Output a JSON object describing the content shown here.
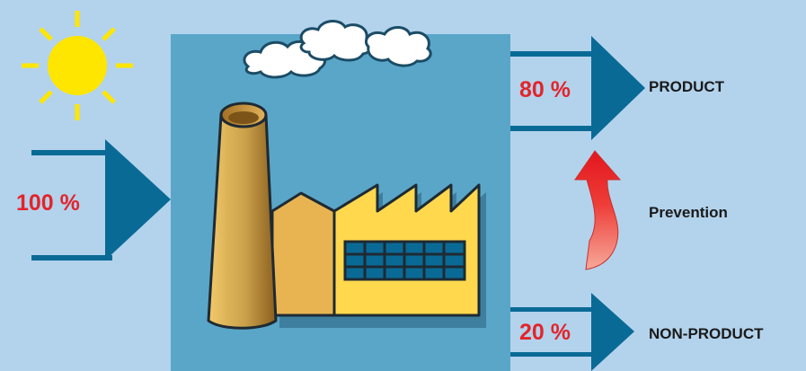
{
  "input": {
    "percent": "100 %"
  },
  "outputs": {
    "product": {
      "percent": "80 %",
      "label": "PRODUCT"
    },
    "non_product": {
      "percent": "20 %",
      "label": "NON-PRODUCT"
    }
  },
  "prevention": {
    "label": "Prevention"
  },
  "colors": {
    "background": "#b3d3ec",
    "factory_panel": "#5aa6c8",
    "arrow": "#0a6a96",
    "percent_text": "#e3242b",
    "sun": "#ffe600",
    "factory_wall": "#ffd84d",
    "chimney": "#c89a44",
    "prevention_arrow": "#ee2027"
  }
}
